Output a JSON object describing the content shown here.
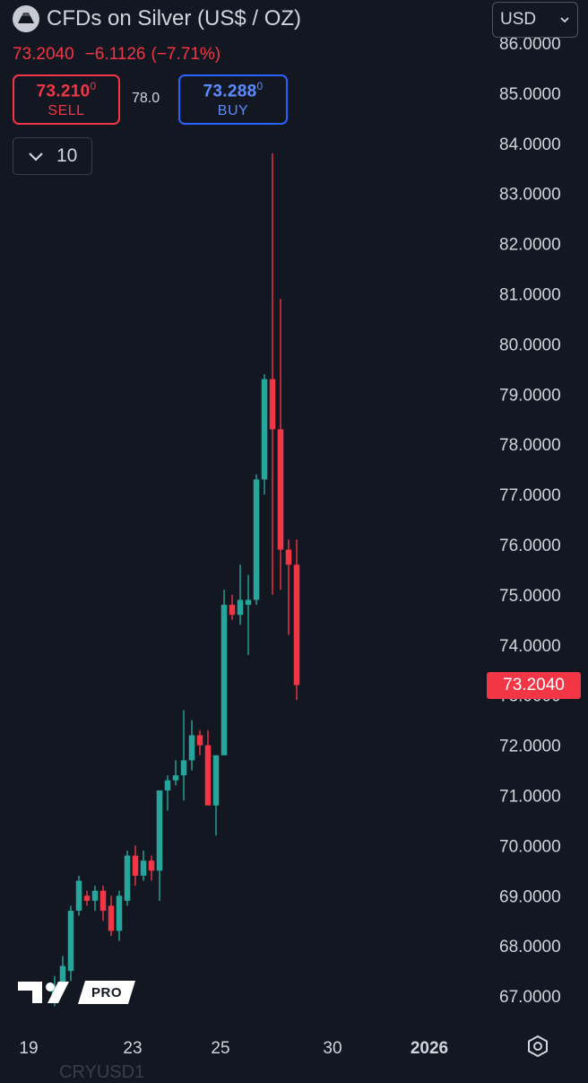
{
  "header": {
    "symbol_title": "CFDs on Silver (US$ / OZ)",
    "last_price": "73.2040",
    "change": "−6.1126",
    "change_pct": "(−7.71%)",
    "currency": "USD"
  },
  "trade": {
    "sell_price": "73.210",
    "sell_sup": "0",
    "sell_label": "SELL",
    "spread": "78.0",
    "buy_price": "73.288",
    "buy_sup": "0",
    "buy_label": "BUY"
  },
  "lot": {
    "value": "10"
  },
  "badge": {
    "current_price": "73.2040"
  },
  "branding": {
    "pro_label": "PRO"
  },
  "bottom_partial_text": "CRYUSD1",
  "colors": {
    "up": "#26a69a",
    "down": "#f23645",
    "background": "#131722",
    "buy": "#2962ff"
  },
  "chart_data": {
    "type": "candlestick",
    "price_axis": {
      "ylim": [
        66.4,
        86.4
      ],
      "ticks": [
        "86.0000",
        "85.0000",
        "84.0000",
        "83.0000",
        "82.0000",
        "81.0000",
        "80.0000",
        "79.0000",
        "78.0000",
        "77.0000",
        "76.0000",
        "75.0000",
        "74.0000",
        "73.0000",
        "72.0000",
        "71.0000",
        "70.0000",
        "69.0000",
        "68.0000",
        "67.0000"
      ]
    },
    "time_axis": {
      "labels": [
        "19",
        "23",
        "25",
        "30",
        "2026"
      ]
    },
    "candles": [
      {
        "o": 66.9,
        "h": 67.4,
        "l": 66.8,
        "c": 67.2
      },
      {
        "o": 67.2,
        "h": 67.8,
        "l": 67.1,
        "c": 67.6
      },
      {
        "o": 67.5,
        "h": 68.8,
        "l": 67.3,
        "c": 68.7
      },
      {
        "o": 68.7,
        "h": 69.4,
        "l": 68.6,
        "c": 69.3
      },
      {
        "o": 69.0,
        "h": 69.1,
        "l": 68.8,
        "c": 68.9
      },
      {
        "o": 68.9,
        "h": 69.2,
        "l": 68.7,
        "c": 69.1
      },
      {
        "o": 69.1,
        "h": 69.2,
        "l": 68.5,
        "c": 68.7
      },
      {
        "o": 68.8,
        "h": 69.0,
        "l": 68.2,
        "c": 68.3
      },
      {
        "o": 68.3,
        "h": 69.1,
        "l": 68.1,
        "c": 69.0
      },
      {
        "o": 68.9,
        "h": 69.9,
        "l": 68.8,
        "c": 69.8
      },
      {
        "o": 69.8,
        "h": 70.0,
        "l": 69.2,
        "c": 69.4
      },
      {
        "o": 69.4,
        "h": 69.9,
        "l": 69.3,
        "c": 69.7
      },
      {
        "o": 69.7,
        "h": 69.8,
        "l": 69.3,
        "c": 69.5
      },
      {
        "o": 69.5,
        "h": 71.1,
        "l": 68.9,
        "c": 71.1
      },
      {
        "o": 71.1,
        "h": 71.4,
        "l": 70.7,
        "c": 71.3
      },
      {
        "o": 71.3,
        "h": 71.7,
        "l": 71.2,
        "c": 71.4
      },
      {
        "o": 71.4,
        "h": 72.7,
        "l": 70.9,
        "c": 71.7
      },
      {
        "o": 71.7,
        "h": 72.5,
        "l": 71.5,
        "c": 72.2
      },
      {
        "o": 72.2,
        "h": 72.3,
        "l": 71.8,
        "c": 72.0
      },
      {
        "o": 72.0,
        "h": 72.3,
        "l": 70.8,
        "c": 70.8
      },
      {
        "o": 70.8,
        "h": 71.8,
        "l": 70.2,
        "c": 71.8
      },
      {
        "o": 71.8,
        "h": 75.1,
        "l": 71.8,
        "c": 74.8
      },
      {
        "o": 74.8,
        "h": 75.0,
        "l": 74.5,
        "c": 74.6
      },
      {
        "o": 74.6,
        "h": 75.6,
        "l": 74.4,
        "c": 74.9
      },
      {
        "o": 74.8,
        "h": 75.4,
        "l": 73.8,
        "c": 74.9
      },
      {
        "o": 74.9,
        "h": 77.4,
        "l": 74.8,
        "c": 77.3
      },
      {
        "o": 77.3,
        "h": 79.4,
        "l": 77.0,
        "c": 79.3
      },
      {
        "o": 79.3,
        "h": 83.8,
        "l": 75.0,
        "c": 78.3
      },
      {
        "o": 78.3,
        "h": 80.9,
        "l": 75.1,
        "c": 75.9
      },
      {
        "o": 75.9,
        "h": 76.1,
        "l": 74.2,
        "c": 75.6
      },
      {
        "o": 75.6,
        "h": 76.1,
        "l": 72.9,
        "c": 73.2
      }
    ]
  }
}
